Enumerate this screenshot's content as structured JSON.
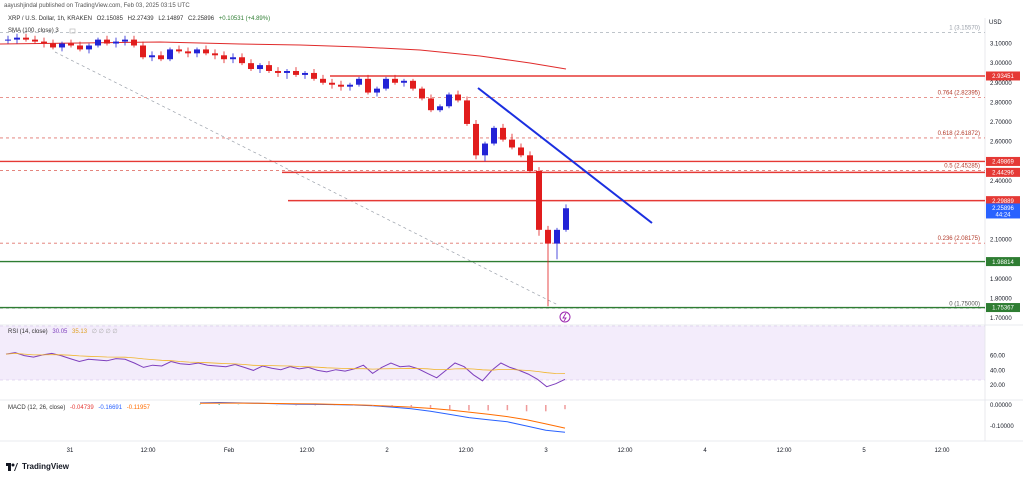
{
  "header": {
    "published": "aayushjindal published on TradingView.com, Feb 03, 2025 03:15 UTC"
  },
  "symbol": {
    "name": "XRP / U.S. Dollar, 1h, KRAKEN",
    "open": "O2.15085",
    "high": "H2.27439",
    "low": "L2.14897",
    "close": "C2.25896",
    "change": "+0.10531 (+4.89%)"
  },
  "sma_label": "SMA (100, close) 3",
  "rsi": {
    "label": "RSI (14, close)",
    "value": "30.05",
    "extra": "35.13",
    "dots": "∅ ∅ ∅ ∅"
  },
  "macd": {
    "label": "MACD (12, 26, close)",
    "v1": "-0.04739",
    "v2": "-0.16691",
    "v3": "-0.11957"
  },
  "brand": "TradingView",
  "axis": {
    "currency": "USD"
  },
  "colors": {
    "up": "#2323d6",
    "down": "#e11d1d",
    "sma": "#e02b2b",
    "hline_red": "#e53935",
    "hline_green": "#2e7d32",
    "fib": "#e0746c",
    "trend": "#1b2fe0",
    "rsi": "#7e3fbd",
    "price_tag": "#2962ff"
  },
  "chart_data": {
    "type": "candlestick",
    "x_ticks": [
      "31",
      "12:00",
      "Feb",
      "12:00",
      "2",
      "12:00",
      "3",
      "12:00",
      "4",
      "12:00",
      "5",
      "12:00"
    ],
    "y_ticks": [
      "3.10000",
      "3.00000",
      "2.90000",
      "2.80000",
      "2.70000",
      "2.60000",
      "2.40000",
      "2.10000",
      "1.90000",
      "1.80000",
      "1.70000"
    ],
    "ylim": [
      1.68,
      3.22
    ],
    "candles": [
      [
        3.12,
        3.14,
        3.1,
        3.12
      ],
      [
        3.12,
        3.15,
        3.1,
        3.13
      ],
      [
        3.13,
        3.15,
        3.11,
        3.12
      ],
      [
        3.12,
        3.14,
        3.1,
        3.11
      ],
      [
        3.11,
        3.13,
        3.08,
        3.1
      ],
      [
        3.1,
        3.12,
        3.07,
        3.08
      ],
      [
        3.08,
        3.11,
        3.06,
        3.1
      ],
      [
        3.1,
        3.12,
        3.08,
        3.09
      ],
      [
        3.09,
        3.11,
        3.06,
        3.07
      ],
      [
        3.07,
        3.1,
        3.05,
        3.09
      ],
      [
        3.09,
        3.13,
        3.08,
        3.12
      ],
      [
        3.12,
        3.14,
        3.09,
        3.1
      ],
      [
        3.1,
        3.13,
        3.08,
        3.11
      ],
      [
        3.11,
        3.14,
        3.09,
        3.12
      ],
      [
        3.12,
        3.14,
        3.08,
        3.09
      ],
      [
        3.09,
        3.11,
        3.02,
        3.03
      ],
      [
        3.03,
        3.06,
        3.01,
        3.04
      ],
      [
        3.04,
        3.06,
        3.01,
        3.02
      ],
      [
        3.02,
        3.08,
        3.01,
        3.07
      ],
      [
        3.07,
        3.09,
        3.05,
        3.06
      ],
      [
        3.06,
        3.08,
        3.03,
        3.05
      ],
      [
        3.05,
        3.08,
        3.03,
        3.07
      ],
      [
        3.07,
        3.09,
        3.04,
        3.05
      ],
      [
        3.05,
        3.07,
        3.02,
        3.04
      ],
      [
        3.04,
        3.06,
        3.0,
        3.02
      ],
      [
        3.02,
        3.05,
        3.0,
        3.03
      ],
      [
        3.03,
        3.05,
        2.99,
        3.0
      ],
      [
        3.0,
        3.02,
        2.96,
        2.97
      ],
      [
        2.97,
        3.0,
        2.95,
        2.99
      ],
      [
        2.99,
        3.01,
        2.95,
        2.96
      ],
      [
        2.96,
        2.98,
        2.93,
        2.95
      ],
      [
        2.95,
        2.97,
        2.92,
        2.96
      ],
      [
        2.96,
        2.98,
        2.93,
        2.94
      ],
      [
        2.94,
        2.96,
        2.92,
        2.95
      ],
      [
        2.95,
        2.97,
        2.91,
        2.92
      ],
      [
        2.92,
        2.94,
        2.89,
        2.9
      ],
      [
        2.9,
        2.92,
        2.87,
        2.89
      ],
      [
        2.89,
        2.91,
        2.86,
        2.88
      ],
      [
        2.88,
        2.9,
        2.86,
        2.89
      ],
      [
        2.89,
        2.93,
        2.88,
        2.92
      ],
      [
        2.92,
        2.94,
        2.84,
        2.85
      ],
      [
        2.85,
        2.88,
        2.83,
        2.87
      ],
      [
        2.87,
        2.93,
        2.86,
        2.92
      ],
      [
        2.92,
        2.94,
        2.89,
        2.9
      ],
      [
        2.9,
        2.92,
        2.88,
        2.91
      ],
      [
        2.91,
        2.92,
        2.86,
        2.87
      ],
      [
        2.87,
        2.88,
        2.81,
        2.82
      ],
      [
        2.82,
        2.84,
        2.75,
        2.76
      ],
      [
        2.76,
        2.79,
        2.75,
        2.78
      ],
      [
        2.78,
        2.85,
        2.77,
        2.84
      ],
      [
        2.84,
        2.86,
        2.8,
        2.81
      ],
      [
        2.81,
        2.83,
        2.68,
        2.69
      ],
      [
        2.69,
        2.71,
        2.51,
        2.53
      ],
      [
        2.53,
        2.6,
        2.5,
        2.59
      ],
      [
        2.59,
        2.68,
        2.58,
        2.67
      ],
      [
        2.67,
        2.69,
        2.6,
        2.61
      ],
      [
        2.61,
        2.64,
        2.56,
        2.57
      ],
      [
        2.57,
        2.59,
        2.52,
        2.53
      ],
      [
        2.53,
        2.55,
        2.44,
        2.45
      ],
      [
        2.45,
        2.47,
        2.12,
        2.15
      ],
      [
        2.15,
        2.17,
        1.76,
        2.08
      ],
      [
        2.08,
        2.16,
        2.0,
        2.15
      ],
      [
        2.15,
        2.28,
        2.14,
        2.26
      ]
    ],
    "sma100": [
      [
        3.11,
        3.09
      ],
      [
        3.06,
        3.05
      ],
      [
        3.01,
        3.04
      ]
    ],
    "levels": [
      {
        "label": "2.93451",
        "value": 2.9345,
        "kind": "red"
      },
      {
        "label": "2.49869",
        "value": 2.4987,
        "kind": "red"
      },
      {
        "label": "2.44296",
        "value": 2.443,
        "kind": "red"
      },
      {
        "label": "2.29889",
        "value": 2.2989,
        "kind": "red"
      },
      {
        "label": "1.98814",
        "value": 1.9881,
        "kind": "green"
      },
      {
        "label": "1.75367",
        "value": 1.7537,
        "kind": "green"
      }
    ],
    "fib": [
      {
        "label": "1 (3.15570)",
        "value": 3.1557
      },
      {
        "label": "0.764 (2.82395)",
        "value": 2.824
      },
      {
        "label": "0.618 (2.61872)",
        "value": 2.6187
      },
      {
        "label": "0.5 (2.45285)",
        "value": 2.4529
      },
      {
        "label": "0.236 (2.08175)",
        "value": 2.0818
      },
      {
        "label": "0 (1.75000)",
        "value": 1.75
      }
    ],
    "current_price": {
      "value": 2.25896,
      "label": "2.25896",
      "countdown": "44:24"
    },
    "rsi_ticks": [
      "60.00",
      "40.00",
      "20.00"
    ],
    "rsi_values": [
      62,
      64,
      60,
      58,
      61,
      63,
      60,
      56,
      52,
      55,
      54,
      53,
      56,
      55,
      50,
      44,
      47,
      46,
      52,
      49,
      48,
      50,
      47,
      46,
      45,
      48,
      44,
      40,
      46,
      43,
      41,
      45,
      42,
      44,
      40,
      38,
      41,
      39,
      42,
      47,
      36,
      44,
      50,
      45,
      46,
      42,
      36,
      30,
      40,
      50,
      45,
      34,
      26,
      40,
      50,
      44,
      40,
      35,
      28,
      18,
      22,
      28
    ],
    "macd_ticks": [
      "0.00000",
      "-0.10000"
    ],
    "macd_line": [
      0.01,
      0.012,
      0.01,
      0.008,
      0.006,
      0.004,
      0.003,
      0.002,
      0.0,
      -0.004,
      -0.01,
      -0.018,
      -0.03,
      -0.045,
      -0.06,
      -0.07,
      -0.08,
      -0.1,
      -0.12,
      -0.13
    ],
    "signal_line": [
      0.008,
      0.009,
      0.009,
      0.008,
      0.007,
      0.006,
      0.005,
      0.003,
      0.001,
      -0.002,
      -0.006,
      -0.01,
      -0.016,
      -0.024,
      -0.034,
      -0.044,
      -0.055,
      -0.07,
      -0.09,
      -0.11
    ]
  }
}
